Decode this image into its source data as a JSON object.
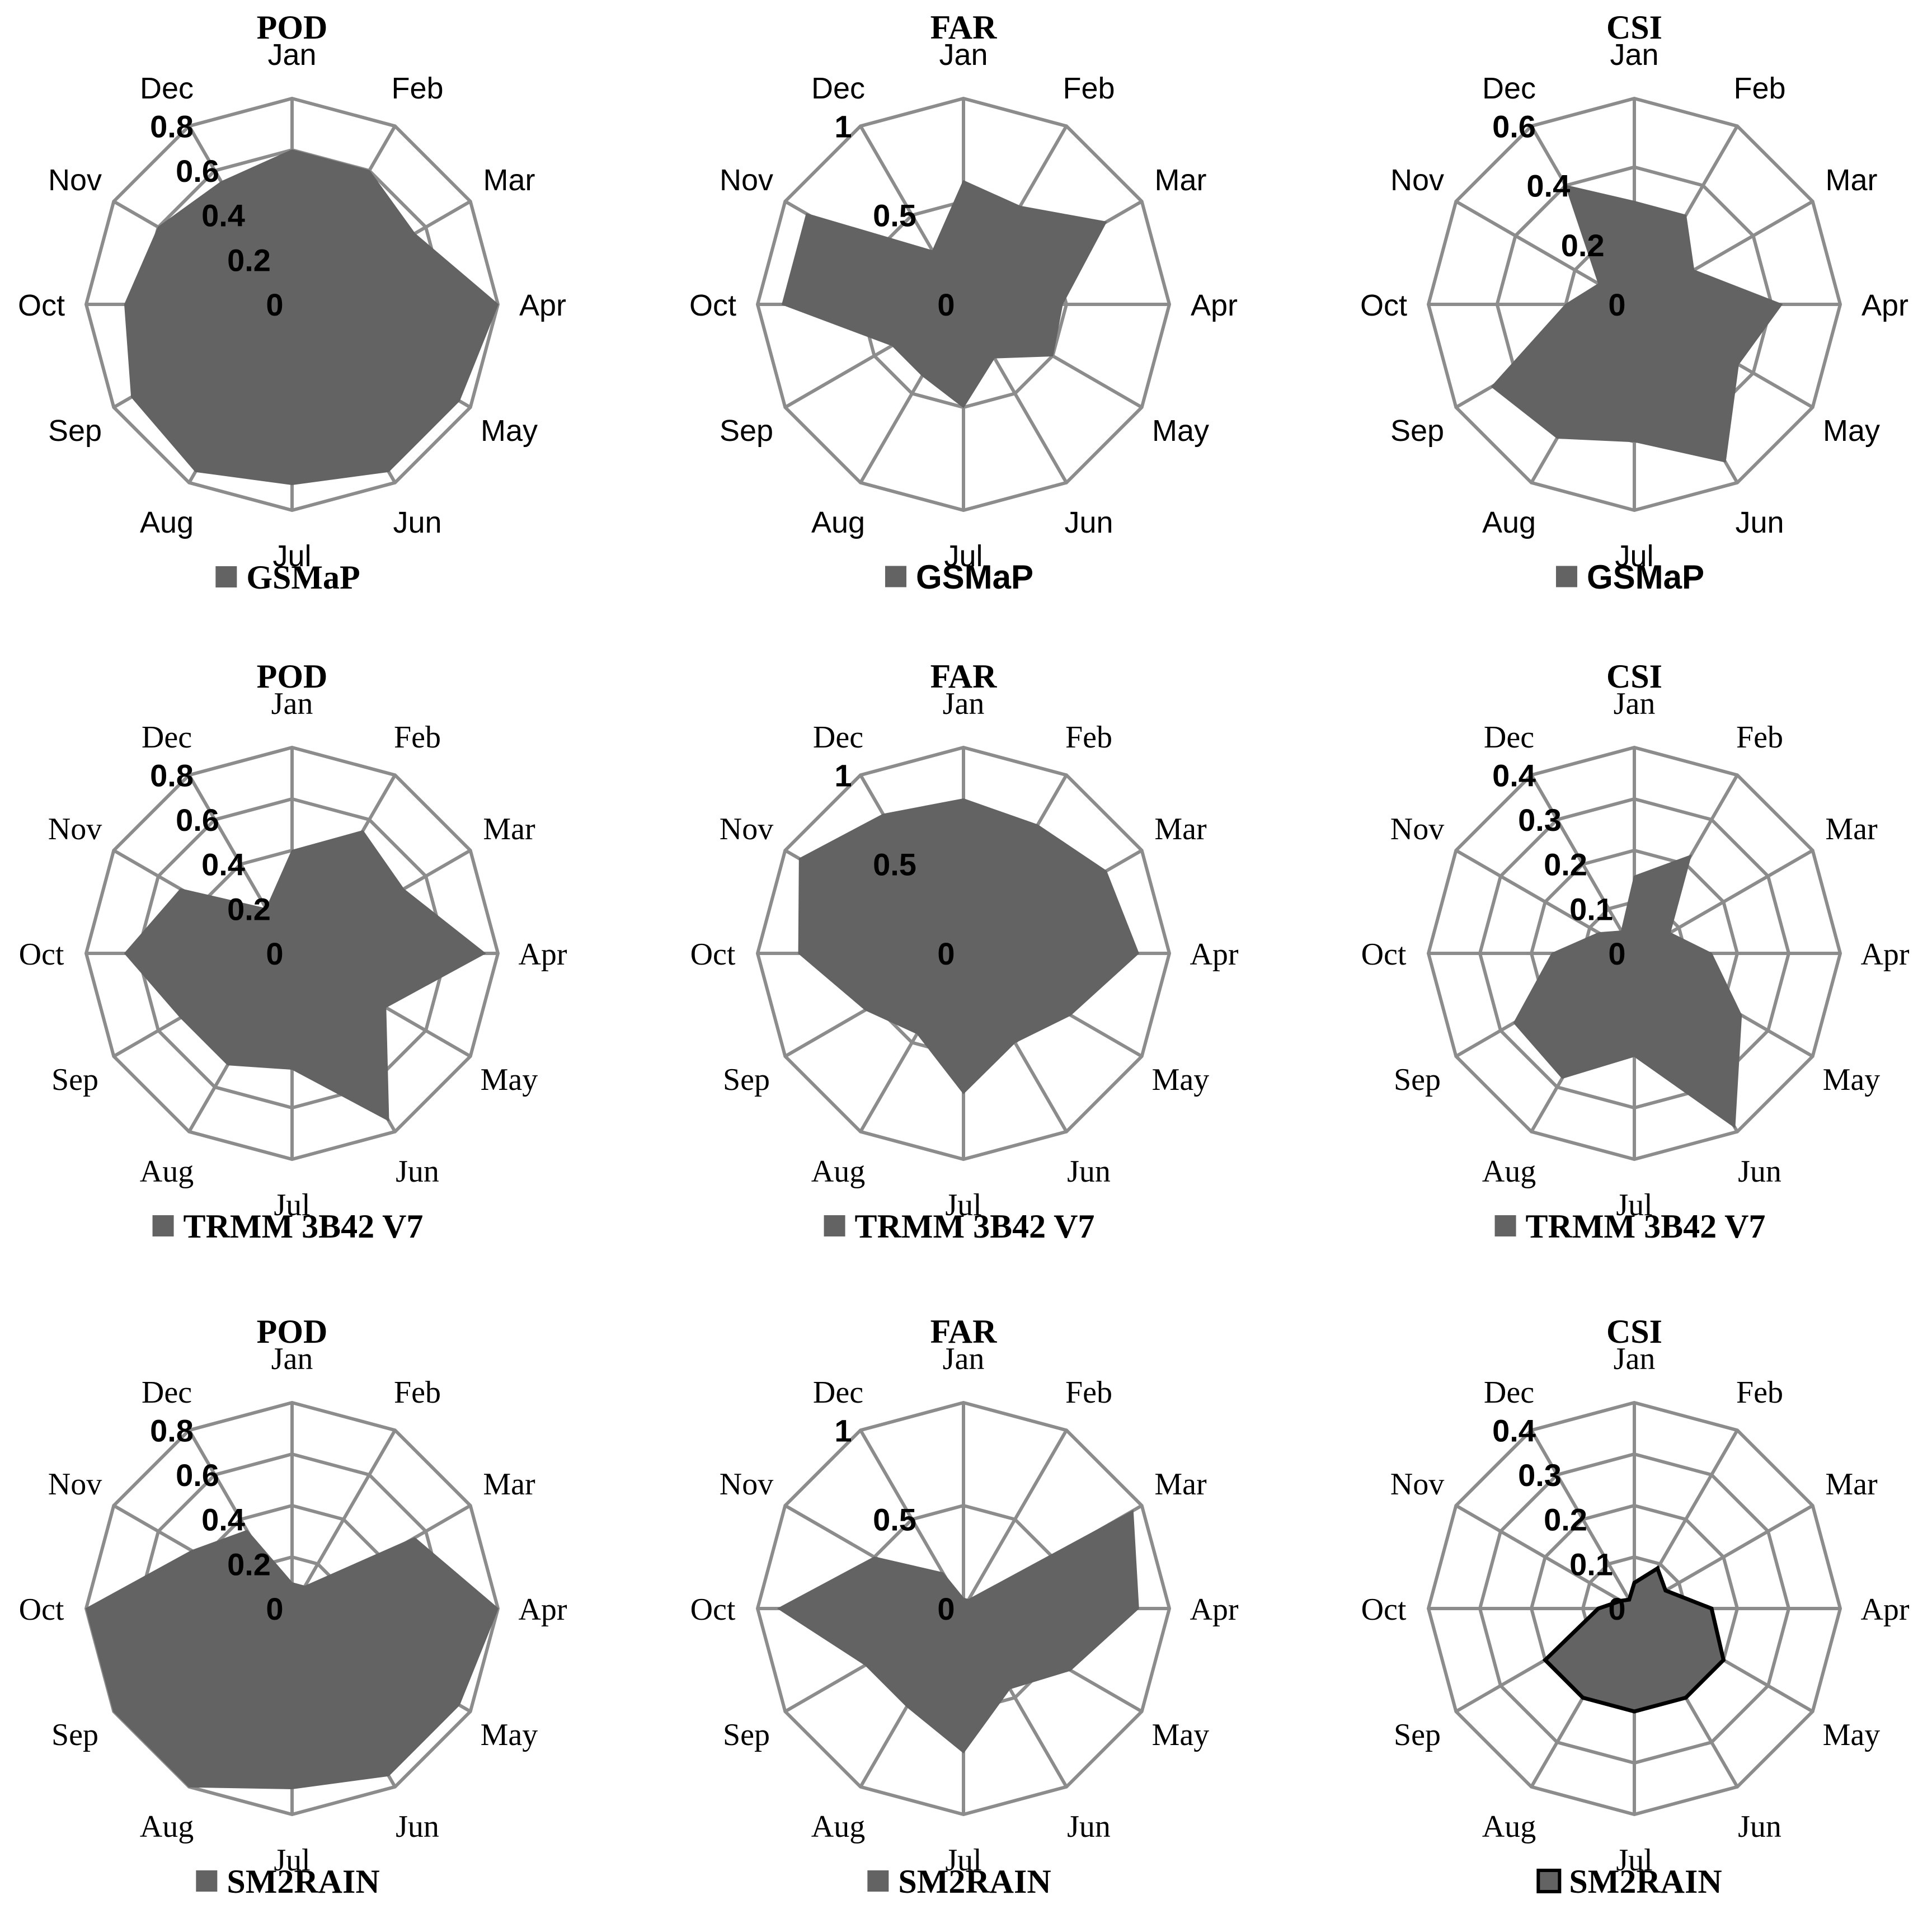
{
  "colors": {
    "series_fill": "#636363",
    "grid": "#8c8c8c",
    "outline": "#000000"
  },
  "chart_data": [
    {
      "type": "radar",
      "title": "POD",
      "legend": "GSMaP",
      "categories": [
        "Jan",
        "Feb",
        "Mar",
        "Apr",
        "May",
        "Jun",
        "Jul",
        "Aug",
        "Sep",
        "Oct",
        "Nov",
        "Dec"
      ],
      "ticks": [
        "0",
        "0.2",
        "0.4",
        "0.6",
        "0.8"
      ],
      "range": [
        0,
        0.8
      ],
      "values": [
        0.6,
        0.6,
        0.55,
        0.8,
        0.75,
        0.75,
        0.7,
        0.75,
        0.72,
        0.65,
        0.6,
        0.55
      ]
    },
    {
      "type": "radar",
      "title": "FAR",
      "legend": "GSMaP",
      "categories": [
        "Jan",
        "Feb",
        "Mar",
        "Apr",
        "May",
        "Jun",
        "Jul",
        "Aug",
        "Sep",
        "Oct",
        "Nov",
        "Dec"
      ],
      "ticks": [
        "0",
        "0.5",
        "1"
      ],
      "range": [
        0,
        1
      ],
      "values": [
        0.6,
        0.55,
        0.8,
        0.48,
        0.5,
        0.3,
        0.5,
        0.4,
        0.4,
        0.88,
        0.88,
        0.3
      ]
    },
    {
      "type": "radar",
      "title": "CSI",
      "legend": "GSMaP",
      "categories": [
        "Jan",
        "Feb",
        "Mar",
        "Apr",
        "May",
        "Jun",
        "Jul",
        "Aug",
        "Sep",
        "Oct",
        "Nov",
        "Dec"
      ],
      "ticks": [
        "0",
        "0.2",
        "0.4",
        "0.6"
      ],
      "range": [
        0,
        0.6
      ],
      "values": [
        0.3,
        0.3,
        0.2,
        0.43,
        0.35,
        0.53,
        0.4,
        0.45,
        0.48,
        0.2,
        0.12,
        0.4
      ]
    },
    {
      "type": "radar",
      "title": "POD",
      "legend": "TRMM 3B42 V7",
      "categories": [
        "Jan",
        "Feb",
        "Mar",
        "Apr",
        "May",
        "Jun",
        "Jul",
        "Aug",
        "Sep",
        "Oct",
        "Nov",
        "Dec"
      ],
      "ticks": [
        "0",
        "0.2",
        "0.4",
        "0.6",
        "0.8"
      ],
      "range": [
        0,
        0.8
      ],
      "values": [
        0.4,
        0.55,
        0.5,
        0.75,
        0.42,
        0.75,
        0.45,
        0.5,
        0.5,
        0.65,
        0.5,
        0.2
      ]
    },
    {
      "type": "radar",
      "title": "FAR",
      "legend": "TRMM 3B42 V7",
      "categories": [
        "Jan",
        "Feb",
        "Mar",
        "Apr",
        "May",
        "Jun",
        "Jul",
        "Aug",
        "Sep",
        "Oct",
        "Nov",
        "Dec"
      ],
      "ticks": [
        "0",
        "0.5",
        "1"
      ],
      "range": [
        0,
        1
      ],
      "values": [
        0.75,
        0.72,
        0.8,
        0.85,
        0.6,
        0.5,
        0.68,
        0.45,
        0.55,
        0.8,
        0.92,
        0.78
      ]
    },
    {
      "type": "radar",
      "title": "CSI",
      "legend": "TRMM 3B42 V7",
      "categories": [
        "Jan",
        "Feb",
        "Mar",
        "Apr",
        "May",
        "Jun",
        "Jul",
        "Aug",
        "Sep",
        "Oct",
        "Nov",
        "Dec"
      ],
      "ticks": [
        "0",
        "0.1",
        "0.2",
        "0.3",
        "0.4"
      ],
      "range": [
        0,
        0.4
      ],
      "values": [
        0.15,
        0.22,
        0.08,
        0.15,
        0.24,
        0.39,
        0.2,
        0.28,
        0.27,
        0.16,
        0.08,
        0.05
      ]
    },
    {
      "type": "radar",
      "title": "POD",
      "legend": "SM2RAIN",
      "categories": [
        "Jan",
        "Feb",
        "Mar",
        "Apr",
        "May",
        "Jun",
        "Jul",
        "Aug",
        "Sep",
        "Oct",
        "Nov",
        "Dec"
      ],
      "ticks": [
        "0",
        "0.2",
        "0.4",
        "0.6",
        "0.8"
      ],
      "range": [
        0,
        0.8
      ],
      "values": [
        0.1,
        0.1,
        0.55,
        0.8,
        0.75,
        0.75,
        0.7,
        0.8,
        0.8,
        0.8,
        0.45,
        0.35
      ]
    },
    {
      "type": "radar",
      "title": "FAR",
      "legend": "SM2RAIN",
      "categories": [
        "Jan",
        "Feb",
        "Mar",
        "Apr",
        "May",
        "Jun",
        "Jul",
        "Aug",
        "Sep",
        "Oct",
        "Nov",
        "Dec"
      ],
      "ticks": [
        "0",
        "0.5",
        "1"
      ],
      "range": [
        0,
        1
      ],
      "values": [
        0.05,
        0.05,
        0.95,
        0.85,
        0.6,
        0.45,
        0.7,
        0.55,
        0.55,
        0.9,
        0.5,
        0.2
      ]
    },
    {
      "type": "radar",
      "title": "CSI",
      "legend": "SM2RAIN",
      "categories": [
        "Jan",
        "Feb",
        "Mar",
        "Apr",
        "May",
        "Jun",
        "Jul",
        "Aug",
        "Sep",
        "Oct",
        "Nov",
        "Dec"
      ],
      "ticks": [
        "0",
        "0.1",
        "0.2",
        "0.3",
        "0.4"
      ],
      "range": [
        0,
        0.4
      ],
      "values": [
        0.05,
        0.09,
        0.07,
        0.15,
        0.2,
        0.2,
        0.2,
        0.2,
        0.2,
        0.07,
        0.03,
        0.02
      ]
    }
  ]
}
